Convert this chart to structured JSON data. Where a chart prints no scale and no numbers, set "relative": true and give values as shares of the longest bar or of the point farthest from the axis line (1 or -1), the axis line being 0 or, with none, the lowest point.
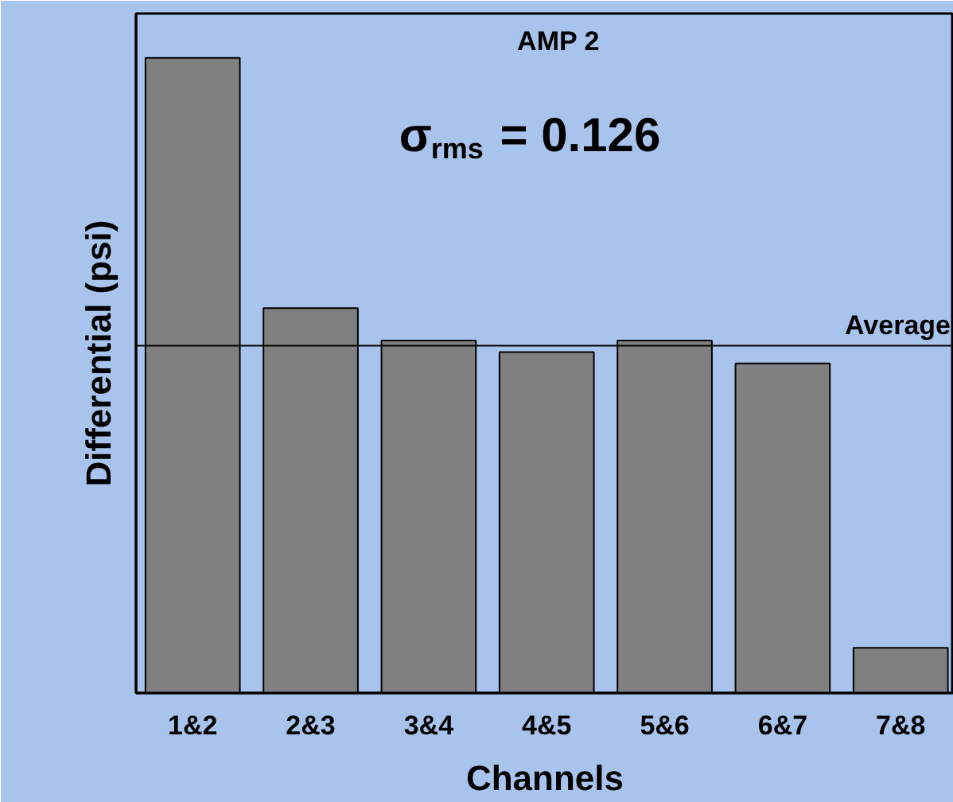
{
  "chart_data": {
    "type": "bar",
    "title": "AMP 2",
    "relative": true,
    "categories": [
      "1&2",
      "2&3",
      "3&4",
      "4&5",
      "5&6",
      "6&7",
      "7&8"
    ],
    "values": [
      1,
      0.606,
      0.555,
      0.537,
      0.555,
      0.519,
      0.071
    ],
    "color": "#808080",
    "xlabel": "Channels",
    "ylabel": "Differential (psi)",
    "annotations": [
      "σ$_{rms}$ = 0.126"
    ],
    "ref_lines": [
      {
        "axis": "y",
        "value": 0.547,
        "label": "Average",
        "color": "#000000"
      }
    ],
    "grid": false
  }
}
